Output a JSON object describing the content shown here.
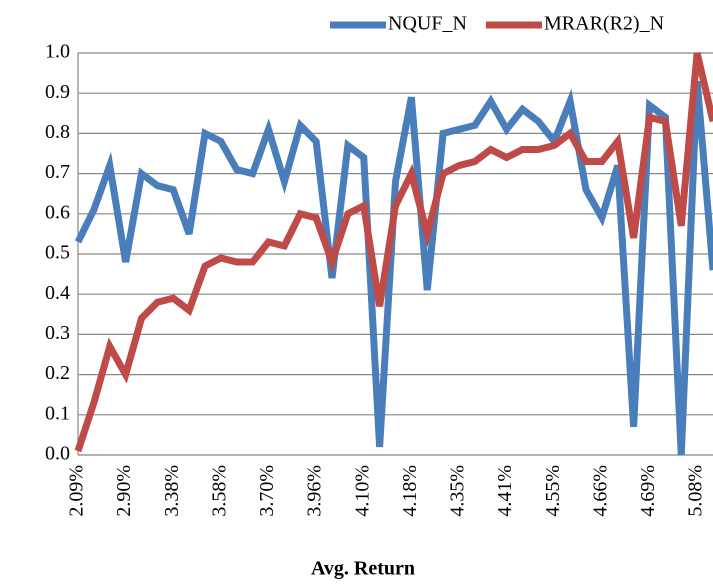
{
  "chart_data": {
    "type": "line",
    "x_label": "Avg. Return",
    "categories": [
      "2.09%",
      null,
      null,
      "2.90%",
      null,
      null,
      "3.38%",
      null,
      null,
      "3.58%",
      null,
      null,
      "3.70%",
      null,
      null,
      "3.96%",
      null,
      null,
      "4.10%",
      null,
      null,
      "4.18%",
      null,
      null,
      "4.35%",
      null,
      null,
      "4.41%",
      null,
      null,
      "4.55%",
      null,
      null,
      "4.66%",
      null,
      null,
      "4.69%",
      null,
      null,
      "5.08%",
      null
    ],
    "series": [
      {
        "name": "NQUF_N",
        "color": "#4a7ebb",
        "values": [
          0.53,
          0.61,
          0.72,
          0.48,
          0.7,
          0.67,
          0.66,
          0.55,
          0.8,
          0.78,
          0.71,
          0.7,
          0.81,
          0.68,
          0.82,
          0.78,
          0.44,
          0.77,
          0.74,
          0.02,
          0.68,
          0.89,
          0.41,
          0.8,
          0.81,
          0.82,
          0.88,
          0.81,
          0.86,
          0.83,
          0.78,
          0.88,
          0.66,
          0.59,
          0.72,
          0.07,
          0.87,
          0.84,
          0.0,
          0.93,
          0.46
        ]
      },
      {
        "name": "MRAR(R2)_N",
        "color": "#be4b48",
        "values": [
          0.01,
          0.13,
          0.27,
          0.2,
          0.34,
          0.38,
          0.39,
          0.36,
          0.47,
          0.49,
          0.48,
          0.48,
          0.53,
          0.52,
          0.6,
          0.59,
          0.48,
          0.6,
          0.62,
          0.37,
          0.62,
          0.7,
          0.55,
          0.7,
          0.72,
          0.73,
          0.76,
          0.74,
          0.76,
          0.76,
          0.77,
          0.8,
          0.73,
          0.73,
          0.78,
          0.54,
          0.84,
          0.83,
          0.57,
          1.0,
          0.83
        ]
      }
    ],
    "ylim": [
      0,
      1
    ],
    "yticks": [
      {
        "value": 0,
        "label": "0.0"
      },
      0.1,
      0.2,
      0.3,
      0.4,
      0.5,
      0.6,
      0.7,
      0.8,
      0.9,
      {
        "value": 1,
        "label": "1.0"
      }
    ],
    "grid": true,
    "legend": "top-right"
  }
}
